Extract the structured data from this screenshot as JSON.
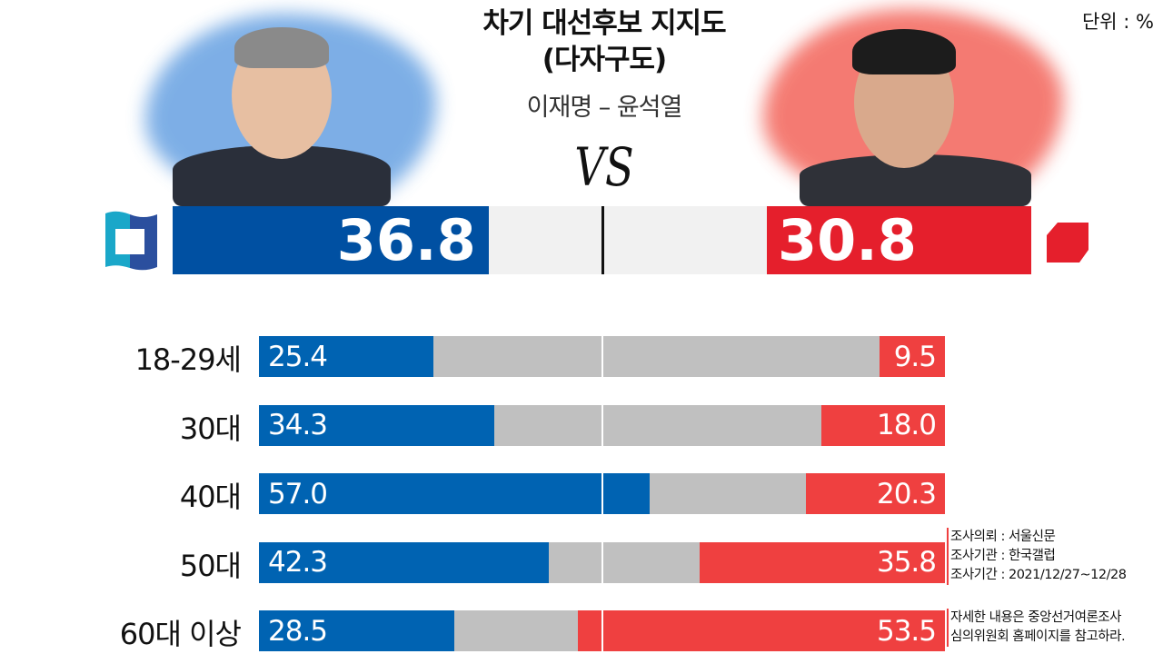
{
  "chart_data": {
    "type": "bar",
    "title": "차기 대선후보 지지도\n(다자구도)",
    "title_lines": [
      "차기 대선후보 지지도",
      "(다자구도)"
    ],
    "subtitle": "이재명 – 윤석열",
    "vs_label": "VS",
    "unit": "단위 : %",
    "colors": {
      "left": "#0050a2",
      "right": "#e51f2c",
      "left_age": "#0063b2",
      "right_age": "#ef4040",
      "neutral": "#c0c0c0",
      "main_neutral": "#f1f1f1"
    },
    "scale_max_each_side": 50,
    "overall": {
      "left": 36.8,
      "right": 30.8,
      "left_label": "36.8",
      "right_label": "30.8"
    },
    "categories": [
      "18-29세",
      "30대",
      "40대",
      "50대",
      "60대 이상"
    ],
    "series": [
      {
        "name": "이재명",
        "values": [
          25.4,
          34.3,
          57.0,
          42.3,
          28.5
        ],
        "labels": [
          "25.4",
          "34.3",
          "57.0",
          "42.3",
          "28.5"
        ]
      },
      {
        "name": "윤석열",
        "values": [
          9.5,
          18.0,
          20.3,
          35.8,
          53.5
        ],
        "labels": [
          "9.5",
          "18.0",
          "20.3",
          "35.8",
          "53.5"
        ]
      }
    ]
  },
  "notes": {
    "survey": [
      "조사의뢰 : 서울신문",
      "조사기관 : 한국갤럽",
      "조사기간 : 2021/12/27~12/28"
    ],
    "disclaimer": [
      "자세한 내용은 중앙선거여론조사",
      "심의위원회 홈페이지를 참고하라."
    ]
  },
  "icons": {
    "left_party": "democratic-party-logo",
    "right_party": "people-power-party-logo"
  }
}
